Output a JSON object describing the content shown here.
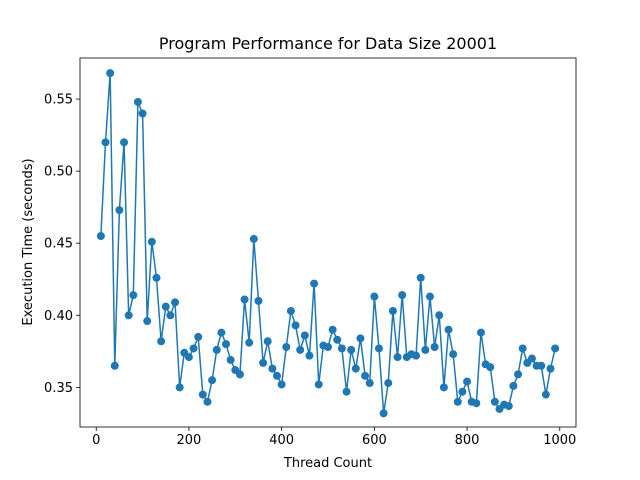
{
  "chart_data": {
    "type": "line",
    "title": "Program Performance for Data Size 20001",
    "xlabel": "Thread Count",
    "ylabel": "Execution Time (seconds)",
    "xlim": [
      -35,
      1035
    ],
    "ylim": [
      0.3225,
      0.5785
    ],
    "xticks": [
      0,
      200,
      400,
      600,
      800,
      1000
    ],
    "yticks": [
      0.35,
      0.4,
      0.45,
      0.5,
      0.55
    ],
    "ytick_labels": [
      "0.35",
      "0.40",
      "0.45",
      "0.50",
      "0.55"
    ],
    "grid": false,
    "legend": "none",
    "color": "#1f77b4",
    "marker": "circle",
    "series": [
      {
        "x": [
          10,
          20,
          30,
          40,
          50,
          60,
          70,
          80,
          90,
          100,
          110,
          120,
          130,
          140,
          150,
          160,
          170,
          180,
          190,
          200,
          210,
          220,
          230,
          240,
          250,
          260,
          270,
          280,
          290,
          300,
          310,
          320,
          330,
          340,
          350,
          360,
          370,
          380,
          390,
          400,
          410,
          420,
          430,
          440,
          450,
          460,
          470,
          480,
          490,
          500,
          510,
          520,
          530,
          540,
          550,
          560,
          570,
          580,
          590,
          600,
          610,
          620,
          630,
          640,
          650,
          660,
          670,
          680,
          690,
          700,
          710,
          720,
          730,
          740,
          750,
          760,
          770,
          780,
          790,
          800,
          810,
          820,
          830,
          840,
          850,
          860,
          870,
          880,
          890,
          900,
          910,
          920,
          930,
          940,
          950,
          960,
          970,
          980,
          990
        ],
        "y": [
          0.455,
          0.52,
          0.568,
          0.365,
          0.473,
          0.52,
          0.4,
          0.414,
          0.548,
          0.54,
          0.396,
          0.451,
          0.426,
          0.382,
          0.406,
          0.4,
          0.409,
          0.35,
          0.374,
          0.371,
          0.377,
          0.385,
          0.345,
          0.34,
          0.355,
          0.376,
          0.388,
          0.38,
          0.369,
          0.362,
          0.359,
          0.411,
          0.381,
          0.453,
          0.41,
          0.367,
          0.382,
          0.363,
          0.358,
          0.352,
          0.378,
          0.403,
          0.393,
          0.376,
          0.386,
          0.372,
          0.422,
          0.352,
          0.379,
          0.378,
          0.39,
          0.383,
          0.377,
          0.347,
          0.376,
          0.363,
          0.384,
          0.358,
          0.353,
          0.413,
          0.377,
          0.332,
          0.353,
          0.403,
          0.371,
          0.414,
          0.371,
          0.373,
          0.372,
          0.426,
          0.376,
          0.413,
          0.378,
          0.4,
          0.35,
          0.39,
          0.373,
          0.34,
          0.347,
          0.354,
          0.34,
          0.339,
          0.388,
          0.366,
          0.364,
          0.34,
          0.335,
          0.338,
          0.337,
          0.351,
          0.359,
          0.377,
          0.367,
          0.37,
          0.365,
          0.365,
          0.345,
          0.363,
          0.377
        ]
      }
    ]
  }
}
